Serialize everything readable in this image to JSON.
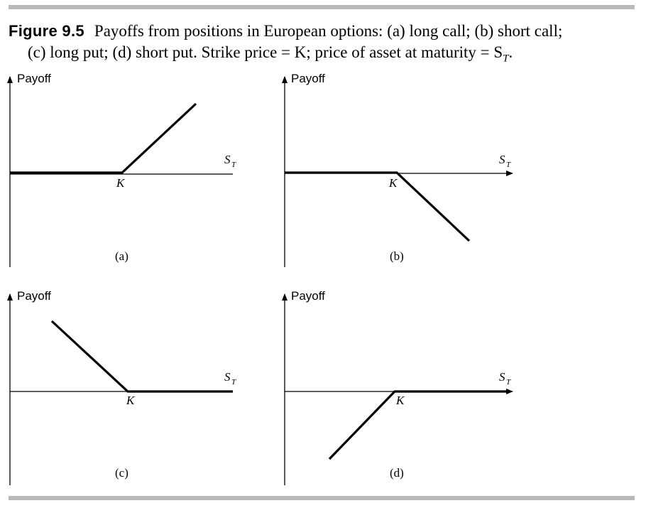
{
  "caption": {
    "figure_label": "Figure 9.5",
    "line1": "Payoffs from positions in European options: (a) long call; (b) short call;",
    "line2": "(c) long put; (d) short put. Strike price = K; price of asset at maturity = S",
    "line2_sub": "T",
    "line2_end": "."
  },
  "panels": [
    {
      "id": "a",
      "label": "(a)",
      "position": "long call",
      "payoff_label": "Payoff",
      "strike_label": "K",
      "price_label": "S",
      "price_sub": "T"
    },
    {
      "id": "b",
      "label": "(b)",
      "position": "short call",
      "payoff_label": "Payoff",
      "strike_label": "K",
      "price_label": "S",
      "price_sub": "T"
    },
    {
      "id": "c",
      "label": "(c)",
      "position": "long put",
      "payoff_label": "Payoff",
      "strike_label": "K",
      "price_label": "S",
      "price_sub": "T"
    },
    {
      "id": "d",
      "label": "(d)",
      "position": "short put",
      "payoff_label": "Payoff",
      "strike_label": "K",
      "price_label": "S",
      "price_sub": "T"
    }
  ],
  "colors": {
    "rule": "#b9b9b9",
    "ink": "#000000"
  }
}
